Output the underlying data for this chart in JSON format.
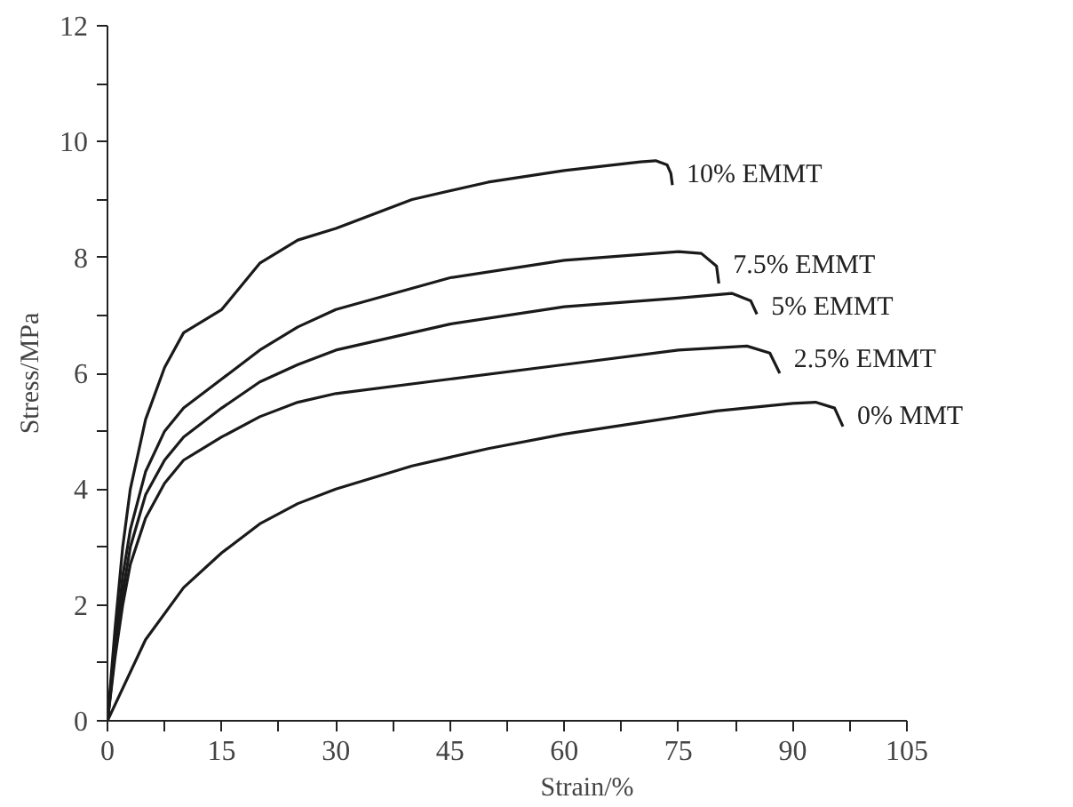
{
  "chart_data": {
    "type": "line",
    "xlabel": "Strain/%",
    "ylabel": "Stress/MPa",
    "xlim": [
      0,
      105
    ],
    "ylim": [
      0,
      12
    ],
    "xticks": [
      0,
      {
        "value": 7.5,
        "label": null
      },
      15,
      {
        "value": 22.5,
        "label": null
      },
      30,
      {
        "value": 37.5,
        "label": null
      },
      45,
      {
        "value": 52.5,
        "label": null
      },
      60,
      {
        "value": 67.5,
        "label": null
      },
      75,
      {
        "value": 82.5,
        "label": null
      },
      90,
      {
        "value": 97.5,
        "label": null
      },
      105
    ],
    "yticks": [
      0,
      {
        "value": 1,
        "label": null
      },
      2,
      {
        "value": 3,
        "label": null
      },
      4,
      {
        "value": 5,
        "label": null
      },
      6,
      {
        "value": 7,
        "label": null
      },
      8,
      {
        "value": 9,
        "label": null
      },
      10,
      {
        "value": 11,
        "label": null
      },
      12
    ],
    "grid": false,
    "marker": "none",
    "line_style": "solid",
    "series": [
      {
        "name": "10% EMMT",
        "color": "#1a1a1a",
        "x": [
          0,
          1,
          2,
          3,
          5,
          7.5,
          10,
          15,
          20,
          25,
          30,
          40,
          50,
          60,
          70,
          72,
          73.5,
          74,
          74.2
        ],
        "values": [
          0,
          1.6,
          3.0,
          4.0,
          5.2,
          6.1,
          6.7,
          7.1,
          7.9,
          8.3,
          8.5,
          9.0,
          9.3,
          9.5,
          9.65,
          9.67,
          9.6,
          9.45,
          9.25
        ]
      },
      {
        "name": "7.5% EMMT",
        "color": "#1a1a1a",
        "x": [
          0,
          1,
          2,
          3,
          5,
          7.5,
          10,
          15,
          20,
          25,
          30,
          45,
          60,
          75,
          78,
          80,
          80.3
        ],
        "values": [
          0,
          1.3,
          2.5,
          3.3,
          4.3,
          5.0,
          5.4,
          5.9,
          6.4,
          6.8,
          7.1,
          7.65,
          7.95,
          8.1,
          8.07,
          7.85,
          7.55
        ]
      },
      {
        "name": "5% EMMT",
        "color": "#1a1a1a",
        "x": [
          0,
          1,
          2,
          3,
          5,
          7.5,
          10,
          15,
          20,
          25,
          30,
          45,
          60,
          75,
          82,
          84.5,
          85.3
        ],
        "values": [
          0,
          1.2,
          2.2,
          3.0,
          3.9,
          4.5,
          4.9,
          5.4,
          5.85,
          6.15,
          6.4,
          6.85,
          7.15,
          7.3,
          7.38,
          7.25,
          7.02
        ]
      },
      {
        "name": "2.5% EMMT",
        "color": "#1a1a1a",
        "x": [
          0,
          1,
          2,
          3,
          5,
          7.5,
          10,
          15,
          20,
          25,
          30,
          45,
          60,
          75,
          84,
          87,
          88.3
        ],
        "values": [
          0,
          1.1,
          2.0,
          2.7,
          3.5,
          4.1,
          4.5,
          4.9,
          5.25,
          5.5,
          5.65,
          5.9,
          6.15,
          6.4,
          6.47,
          6.35,
          6.0
        ]
      },
      {
        "name": "0% MMT",
        "color": "#1a1a1a",
        "x": [
          0,
          5,
          10,
          15,
          20,
          25,
          30,
          40,
          50,
          60,
          70,
          80,
          90,
          93,
          95.5,
          96.6
        ],
        "values": [
          0,
          1.4,
          2.3,
          2.9,
          3.4,
          3.75,
          4.0,
          4.4,
          4.7,
          4.95,
          5.15,
          5.35,
          5.48,
          5.5,
          5.4,
          5.08
        ]
      }
    ]
  }
}
